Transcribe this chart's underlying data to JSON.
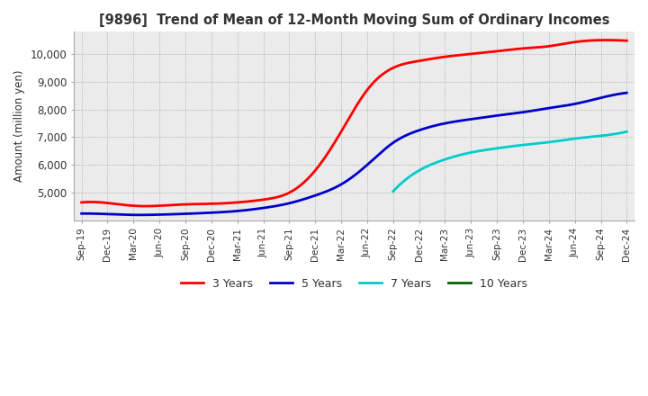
{
  "title": "[9896]  Trend of Mean of 12-Month Moving Sum of Ordinary Incomes",
  "ylabel": "Amount (million yen)",
  "title_color": "#333333",
  "background_color": "#ffffff",
  "plot_bg_color": "#ebebeb",
  "grid_color": "#aaaaaa",
  "x_labels": [
    "Sep-19",
    "Dec-19",
    "Mar-20",
    "Jun-20",
    "Sep-20",
    "Dec-20",
    "Mar-21",
    "Jun-21",
    "Sep-21",
    "Dec-21",
    "Mar-22",
    "Jun-22",
    "Sep-22",
    "Dec-22",
    "Mar-23",
    "Jun-23",
    "Sep-23",
    "Dec-23",
    "Mar-24",
    "Jun-24",
    "Sep-24",
    "Dec-24"
  ],
  "line_3yr": [
    4650,
    4630,
    4530,
    4530,
    4580,
    4600,
    4650,
    4750,
    5000,
    5800,
    7200,
    8700,
    9500,
    9750,
    9900,
    10000,
    10100,
    10200,
    10280,
    10430,
    10500,
    10480
  ],
  "line_5yr": [
    4250,
    4230,
    4200,
    4210,
    4240,
    4280,
    4340,
    4450,
    4620,
    4900,
    5300,
    6000,
    6800,
    7250,
    7500,
    7650,
    7780,
    7900,
    8050,
    8200,
    8420,
    8600
  ],
  "line_7yr": [
    null,
    null,
    null,
    null,
    null,
    null,
    null,
    null,
    null,
    null,
    null,
    null,
    5050,
    5800,
    6200,
    6450,
    6600,
    6720,
    6820,
    6950,
    7050,
    7200
  ],
  "line_10yr": [
    null,
    null,
    null,
    null,
    null,
    null,
    null,
    null,
    null,
    null,
    null,
    null,
    null,
    null,
    null,
    null,
    null,
    null,
    null,
    null,
    null,
    null
  ],
  "color_3yr": "#ff0000",
  "color_5yr": "#0000cc",
  "color_7yr": "#00cccc",
  "color_10yr": "#006600",
  "linewidth": 2.0,
  "ylim": [
    4000,
    10800
  ],
  "yticks": [
    5000,
    6000,
    7000,
    8000,
    9000,
    10000
  ],
  "legend_labels": [
    "3 Years",
    "5 Years",
    "7 Years",
    "10 Years"
  ]
}
